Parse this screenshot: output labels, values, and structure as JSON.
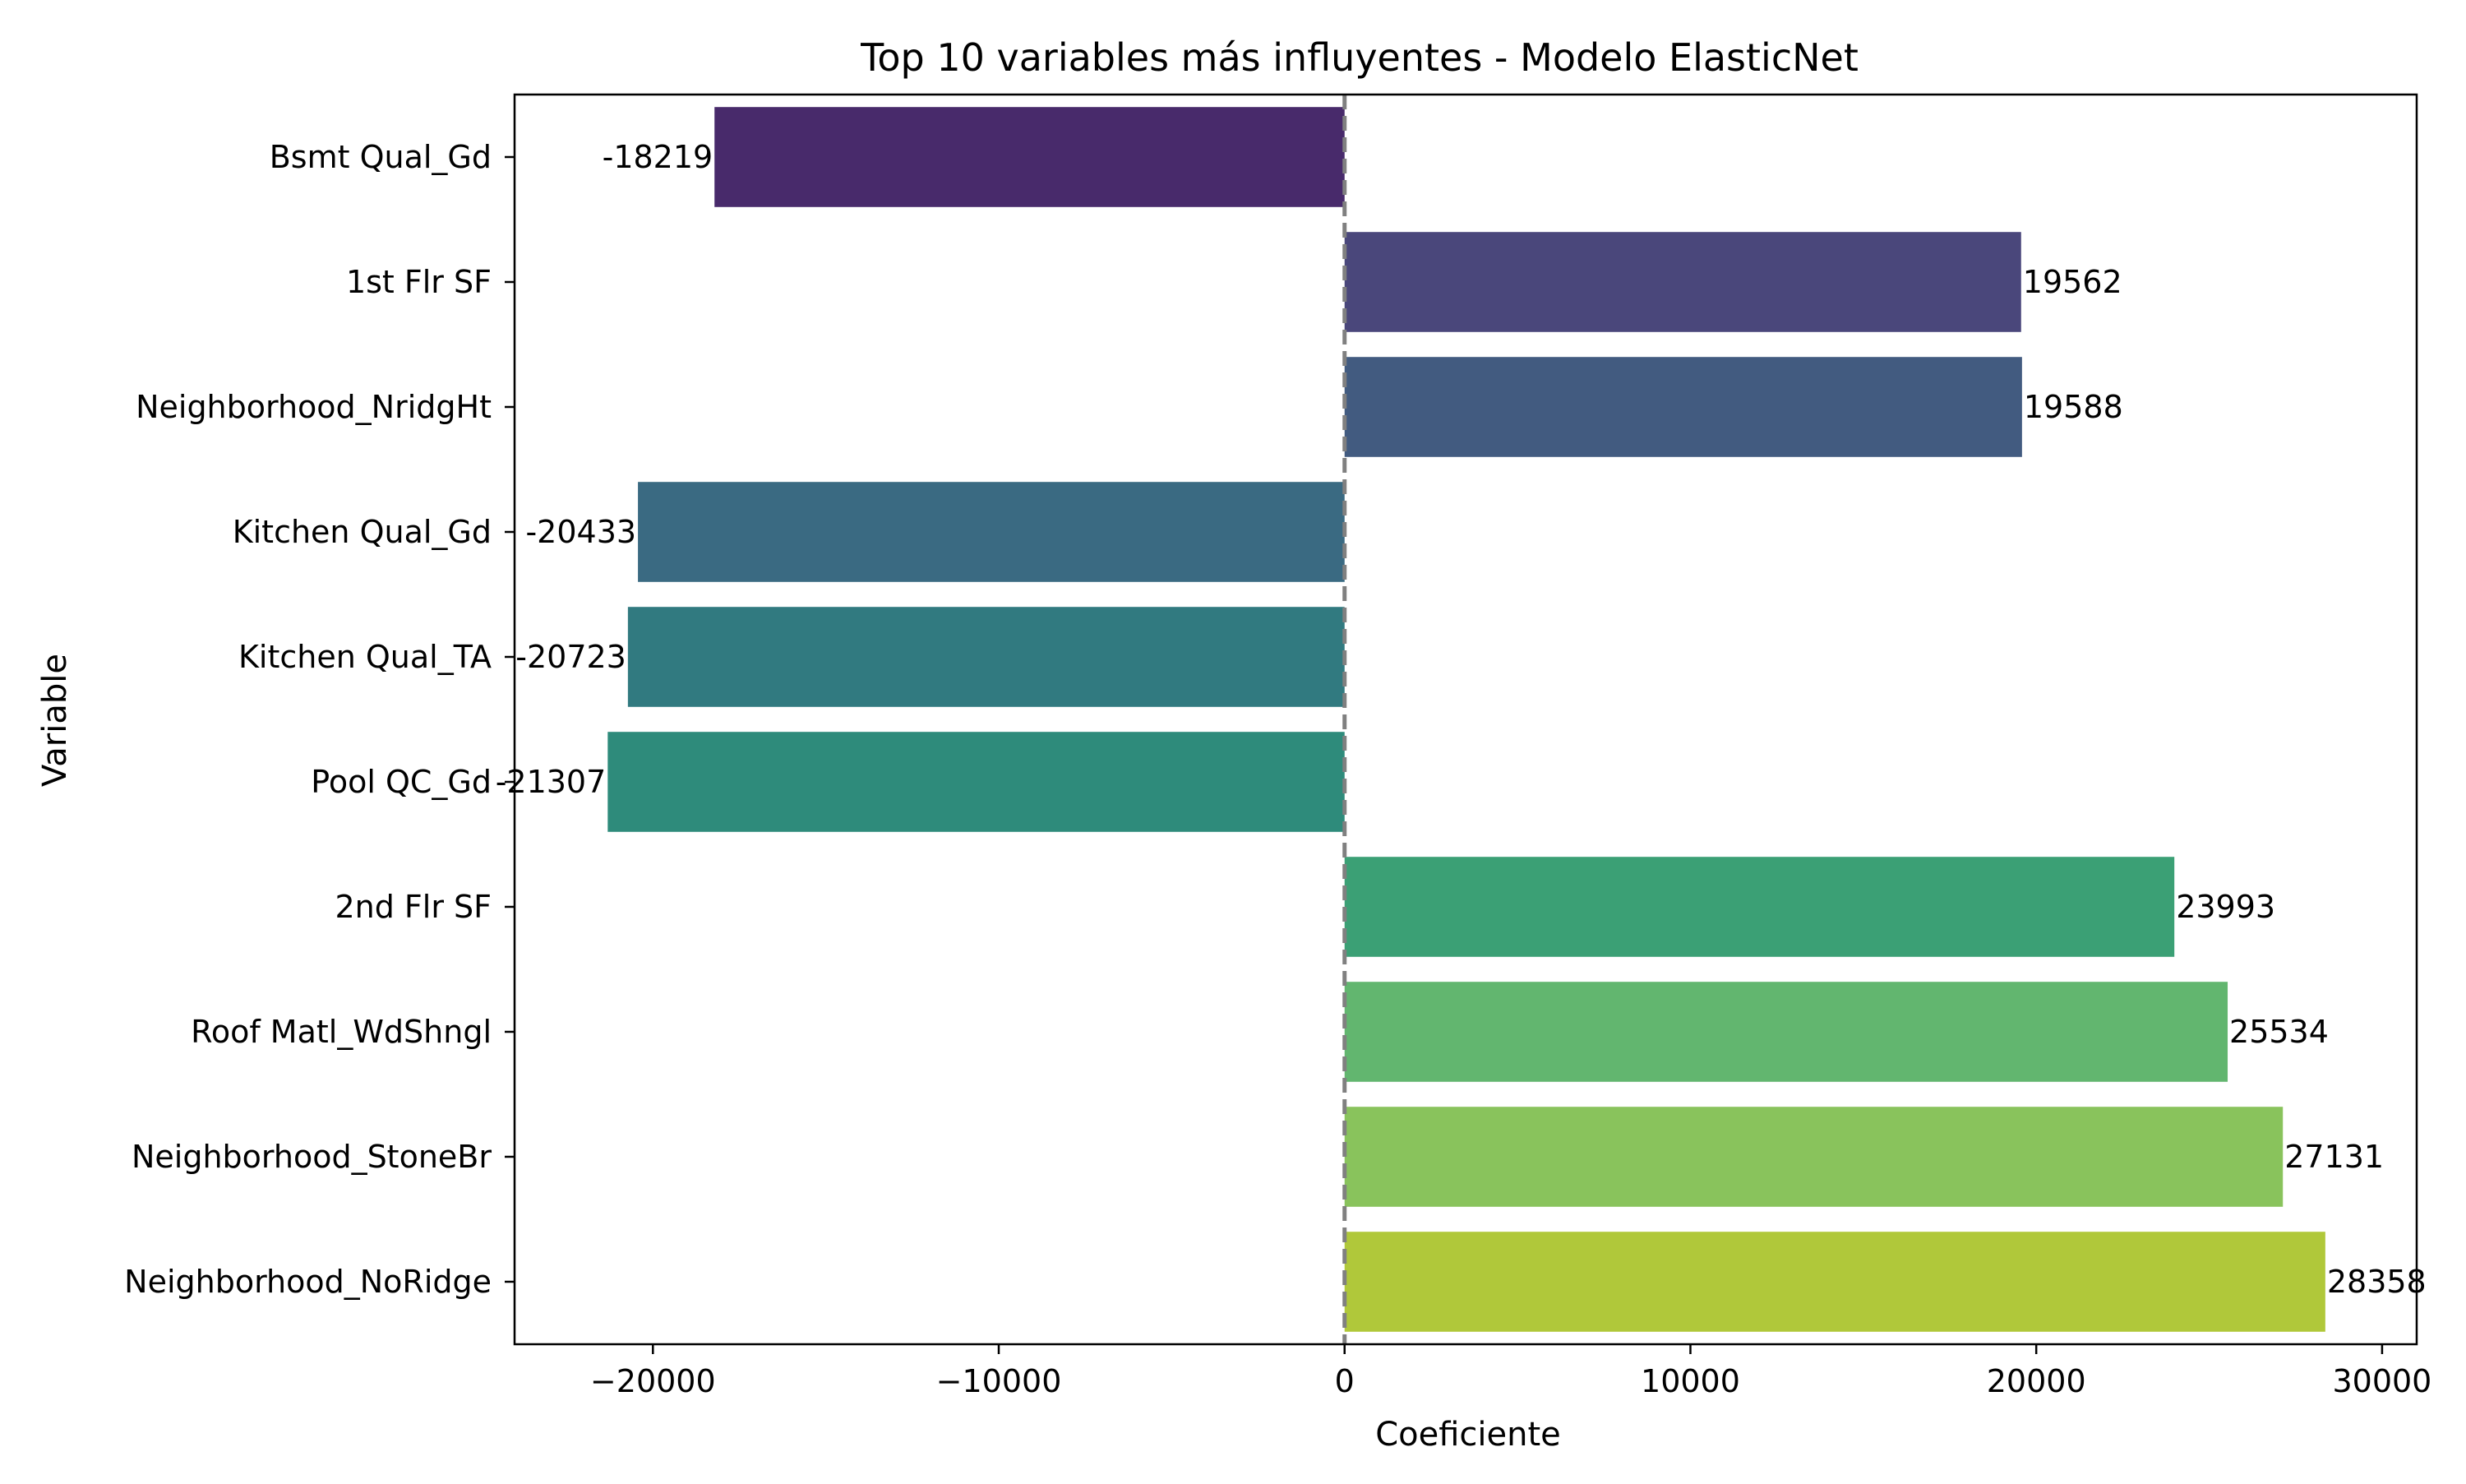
{
  "chart_data": {
    "type": "bar",
    "orientation": "horizontal",
    "title": "Top 10 variables más influyentes - Modelo ElasticNet",
    "xlabel": "Coeficiente",
    "ylabel": "Variable",
    "xlim": [
      -24000,
      31000
    ],
    "xticks": [
      -20000,
      -10000,
      0,
      10000,
      20000,
      30000
    ],
    "xtick_labels": [
      "−20000",
      "−10000",
      "0",
      "10000",
      "20000",
      "30000"
    ],
    "grid": false,
    "reference_line": {
      "x": 0,
      "style": "dashed",
      "color": "#808080"
    },
    "categories": [
      "Bsmt Qual_Gd",
      "1st Flr SF",
      "Neighborhood_NridgHt",
      "Kitchen Qual_Gd",
      "Kitchen Qual_TA",
      "Pool QC_Gd",
      "2nd Flr SF",
      "Roof Matl_WdShngl",
      "Neighborhood_StoneBr",
      "Neighborhood_NoRidge"
    ],
    "values": [
      -18219,
      19562,
      19588,
      -20433,
      -20723,
      -21307,
      23993,
      25534,
      27131,
      28358
    ],
    "value_labels": [
      "-18219",
      "19562",
      "19588",
      "-20433",
      "-20723",
      "-21307",
      "23993",
      "25534",
      "27131",
      "28358"
    ],
    "colors": [
      "#482a6b",
      "#4a477b",
      "#425b80",
      "#3a6a82",
      "#317a80",
      "#2e8b7b",
      "#3ba075",
      "#62b66f",
      "#89c35c",
      "#b0c83a"
    ]
  }
}
